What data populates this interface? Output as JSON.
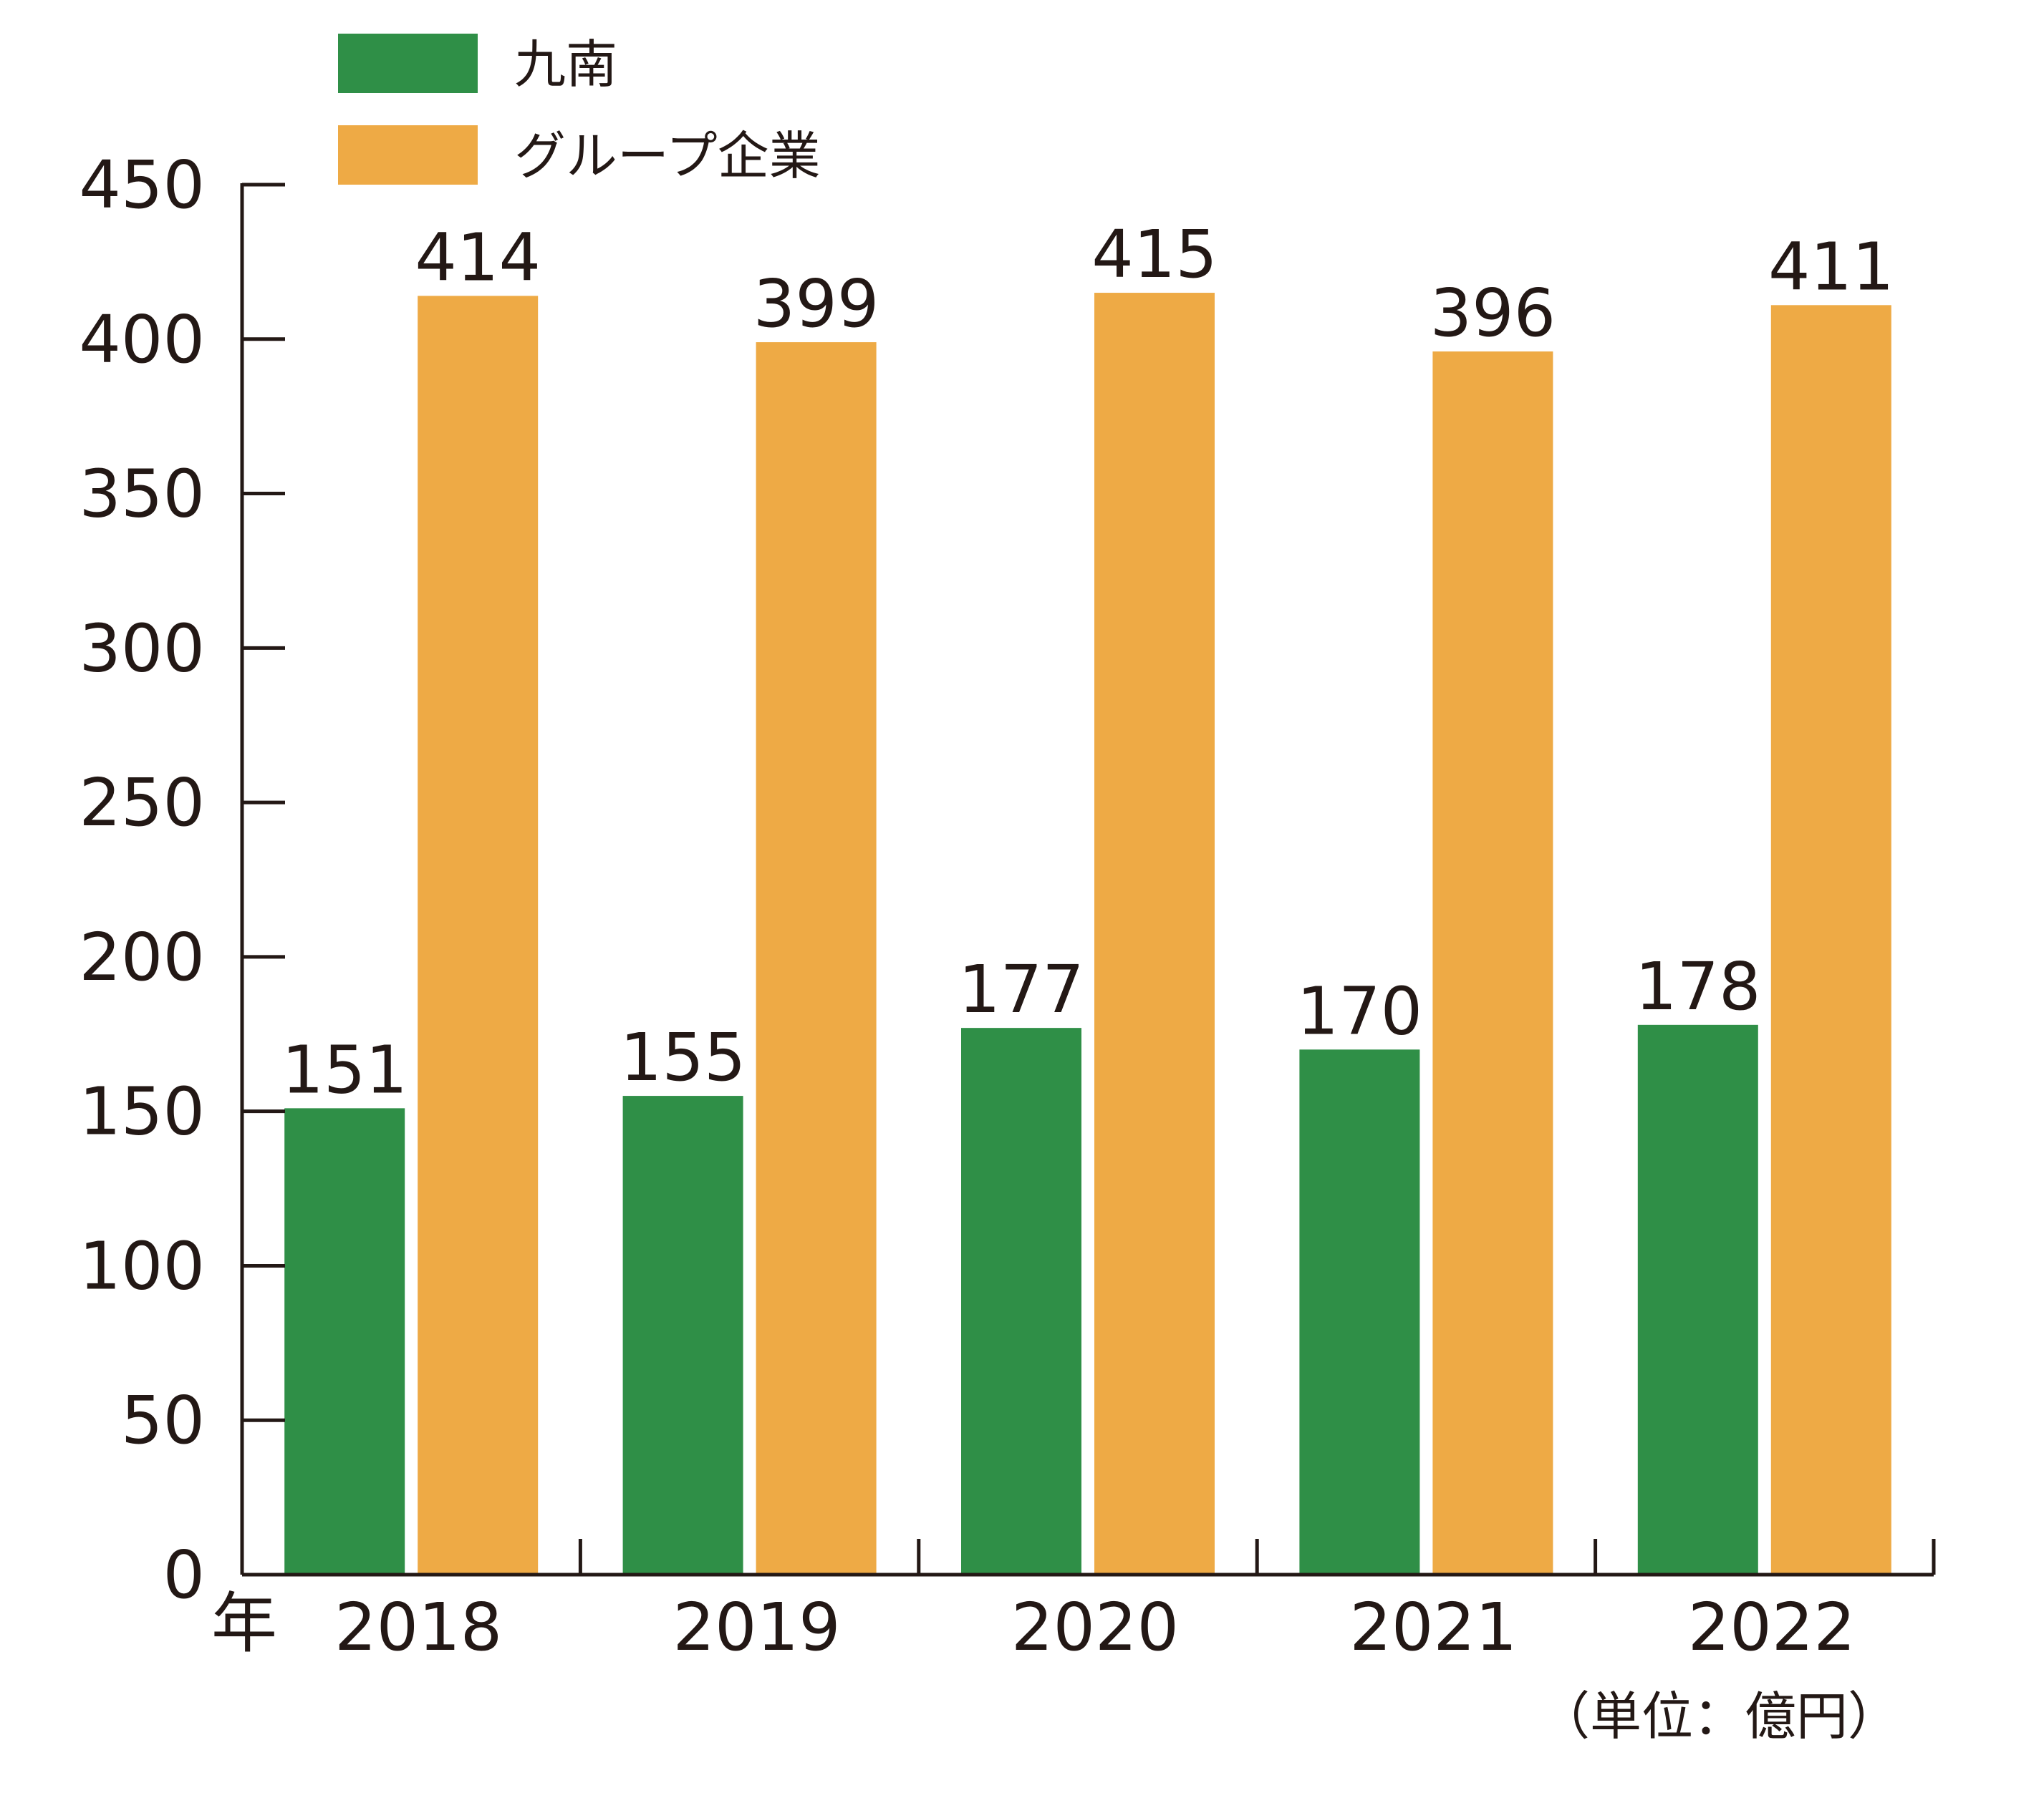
{
  "chart_data": {
    "type": "bar",
    "categories": [
      "2018",
      "2019",
      "2020",
      "2021",
      "2022"
    ],
    "series": [
      {
        "name": "九南",
        "color": "#2f8f47",
        "values": [
          151,
          155,
          177,
          170,
          178
        ]
      },
      {
        "name": "グループ企業",
        "color": "#eeaa45",
        "values": [
          414,
          399,
          415,
          396,
          411
        ]
      }
    ],
    "ylim": [
      0,
      450
    ],
    "yticks": [
      0,
      50,
      100,
      150,
      200,
      250,
      300,
      350,
      400,
      450
    ],
    "xlabel": "年",
    "unit": "（単位：億円）",
    "legend_position": "top-left",
    "grid": false
  }
}
